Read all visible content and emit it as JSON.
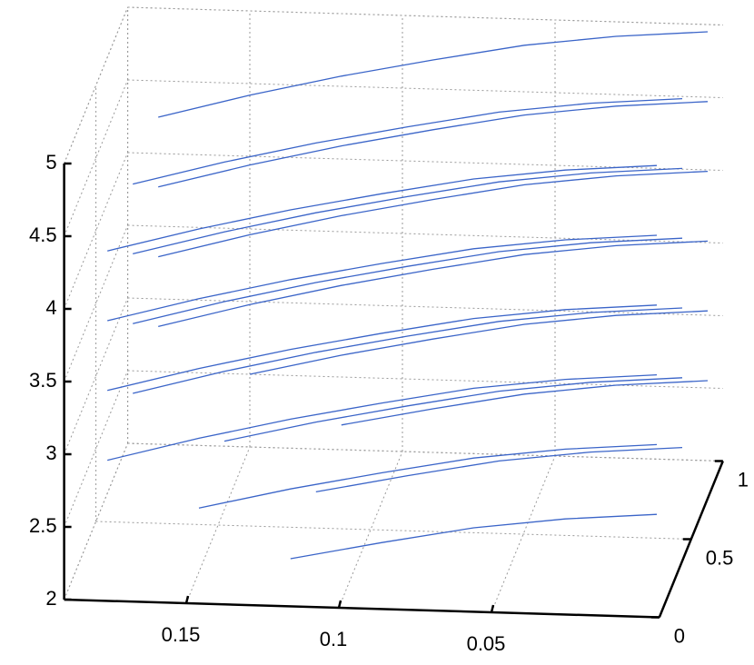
{
  "chart_data": {
    "type": "line3d",
    "x": [
      0.18,
      0.15,
      0.12,
      0.09,
      0.06,
      0.03,
      0
    ],
    "xlim": [
      -0.005,
      0.19
    ],
    "xticks": [
      0.05,
      0.1,
      0.15
    ],
    "ylim": [
      0,
      1
    ],
    "yticks": [
      0,
      0.5,
      1
    ],
    "zlim": [
      2,
      5
    ],
    "zticks": [
      2,
      2.5,
      3,
      3.5,
      4,
      4.5,
      5
    ],
    "grid": true,
    "color": "#3a64c8",
    "series": [
      {
        "y": 0.2,
        "values": [
          null,
          null,
          2.11,
          2.24,
          2.36,
          2.44,
          2.49
        ]
      },
      {
        "y": 0.6,
        "values": [
          null,
          null,
          2.14,
          2.27,
          2.39,
          2.47,
          2.52
        ]
      },
      {
        "y": 1.0,
        "values": [
          null,
          null,
          2.17,
          2.3,
          2.42,
          2.5,
          2.55
        ]
      },
      {
        "y": 0.2,
        "values": [
          null,
          2.44,
          2.59,
          2.72,
          2.84,
          2.92,
          2.97
        ]
      },
      {
        "y": 0.6,
        "values": [
          null,
          2.47,
          2.62,
          2.75,
          2.87,
          2.95,
          3.0
        ]
      },
      {
        "y": 1.0,
        "values": [
          null,
          2.5,
          2.65,
          2.78,
          2.9,
          2.98,
          3.03
        ]
      },
      {
        "y": 0.2,
        "values": [
          2.75,
          2.92,
          3.07,
          3.2,
          3.32,
          3.4,
          3.45
        ]
      },
      {
        "y": 0.6,
        "values": [
          2.78,
          2.95,
          3.1,
          3.23,
          3.35,
          3.43,
          3.48
        ]
      },
      {
        "y": 1.0,
        "values": [
          2.81,
          2.98,
          3.13,
          3.26,
          3.38,
          3.46,
          3.51
        ]
      },
      {
        "y": 0.2,
        "values": [
          3.23,
          3.4,
          3.55,
          3.68,
          3.8,
          3.88,
          3.93
        ]
      },
      {
        "y": 0.6,
        "values": [
          3.26,
          3.43,
          3.58,
          3.71,
          3.83,
          3.91,
          3.96
        ]
      },
      {
        "y": 1.0,
        "values": [
          3.29,
          3.46,
          3.61,
          3.74,
          3.86,
          3.94,
          3.99
        ]
      },
      {
        "y": 0.2,
        "values": [
          3.71,
          3.88,
          4.03,
          4.16,
          4.28,
          4.36,
          4.41
        ]
      },
      {
        "y": 0.6,
        "values": [
          3.74,
          3.91,
          4.06,
          4.19,
          4.31,
          4.39,
          4.44
        ]
      },
      {
        "y": 1.0,
        "values": [
          3.77,
          3.94,
          4.09,
          4.22,
          4.34,
          4.42,
          4.47
        ]
      },
      {
        "y": 0.2,
        "values": [
          4.19,
          4.36,
          4.51,
          4.64,
          4.76,
          4.84,
          4.89
        ]
      },
      {
        "y": 0.6,
        "values": [
          4.22,
          4.39,
          4.54,
          4.67,
          4.79,
          4.87,
          4.92
        ]
      },
      {
        "y": 1.0,
        "values": [
          4.25,
          4.42,
          4.57,
          4.7,
          4.82,
          4.9,
          4.95
        ]
      }
    ]
  }
}
